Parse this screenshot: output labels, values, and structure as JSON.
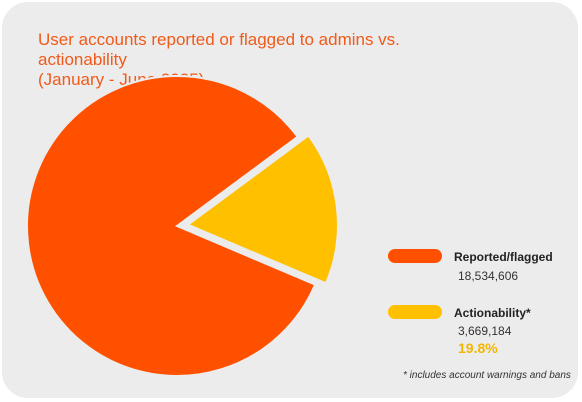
{
  "chart_data": {
    "type": "pie",
    "title_lines": [
      "User accounts reported or flagged to admins vs. actionability",
      "(January - June 2025)"
    ],
    "slices": [
      {
        "name": "Reported/flagged",
        "value": 18534606,
        "value_label": "18,534,606",
        "color": "#ff5000"
      },
      {
        "name": "Actionability*",
        "value": 3669184,
        "value_label": "3,669,184",
        "percent_label": "19.8%",
        "color": "#ffc000"
      }
    ],
    "legend_position": "right",
    "footnote": "* includes account warnings and bans"
  },
  "colors": {
    "background": "#ececec",
    "title": "#f05a1a",
    "percent": "#f3b600"
  }
}
